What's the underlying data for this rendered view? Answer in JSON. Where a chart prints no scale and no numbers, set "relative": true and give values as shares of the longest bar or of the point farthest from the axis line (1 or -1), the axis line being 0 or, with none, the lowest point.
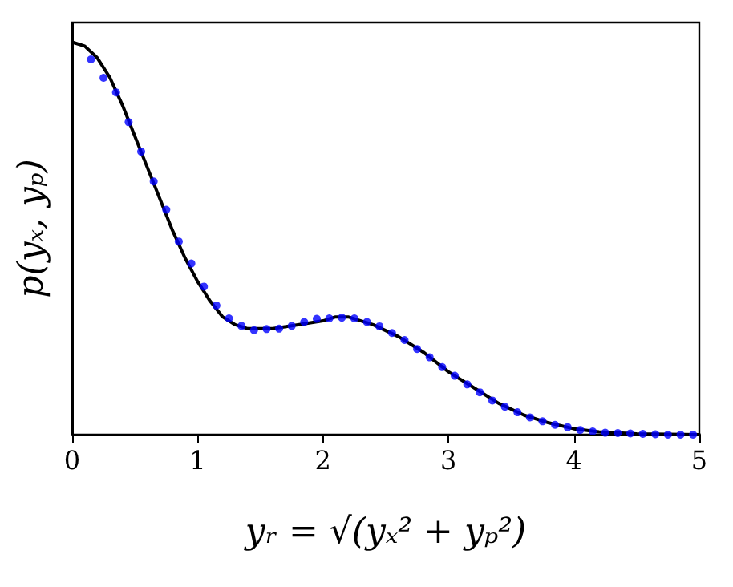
{
  "chart_data": {
    "type": "line",
    "relative": true,
    "xlabel": "yᵣ = √(yₓ² + yₚ²)",
    "ylabel": "p(yₓ, yₚ)",
    "xlim": [
      0,
      5
    ],
    "xticks": [
      0,
      1,
      2,
      3,
      4,
      5
    ],
    "tick_labels": "x",
    "grid": false,
    "series": [
      {
        "color": "#000000",
        "marker": "none",
        "line_style": "solid",
        "x": [
          0,
          0.1,
          0.2,
          0.3,
          0.4,
          0.5,
          0.6,
          0.7,
          0.8,
          0.9,
          1.0,
          1.1,
          1.2,
          1.3,
          1.4,
          1.5,
          1.6,
          1.8,
          2.0,
          2.1,
          2.2,
          2.4,
          2.6,
          2.8,
          3.0,
          3.2,
          3.4,
          3.6,
          3.8,
          4.0,
          4.2,
          4.5,
          5.0
        ],
        "values": [
          1.0,
          0.99,
          0.96,
          0.91,
          0.84,
          0.76,
          0.68,
          0.6,
          0.52,
          0.45,
          0.39,
          0.34,
          0.3,
          0.28,
          0.27,
          0.27,
          0.27,
          0.28,
          0.29,
          0.3,
          0.3,
          0.28,
          0.25,
          0.21,
          0.16,
          0.12,
          0.08,
          0.05,
          0.03,
          0.015,
          0.007,
          0.002,
          0
        ]
      },
      {
        "type": "scatter",
        "color": "#0000ff",
        "marker": "circle",
        "x": [
          0.15,
          0.25,
          0.35,
          0.45,
          0.55,
          0.65,
          0.75,
          0.85,
          0.95,
          1.05,
          1.15,
          1.25,
          1.35,
          1.45,
          1.55,
          1.65,
          1.75,
          1.85,
          1.95,
          2.05,
          2.15,
          2.25,
          2.35,
          2.45,
          2.55,
          2.65,
          2.75,
          2.85,
          2.95,
          3.05,
          3.15,
          3.25,
          3.35,
          3.45,
          3.55,
          3.65,
          3.75,
          3.85,
          3.95,
          4.05,
          4.15,
          4.25,
          4.35,
          4.45,
          4.55,
          4.65,
          4.75,
          4.85,
          4.95
        ],
        "values": [
          0.956,
          0.909,
          0.872,
          0.796,
          0.721,
          0.645,
          0.573,
          0.492,
          0.436,
          0.377,
          0.329,
          0.296,
          0.277,
          0.266,
          0.269,
          0.27,
          0.277,
          0.287,
          0.295,
          0.296,
          0.298,
          0.296,
          0.287,
          0.276,
          0.259,
          0.241,
          0.218,
          0.197,
          0.172,
          0.15,
          0.128,
          0.108,
          0.087,
          0.071,
          0.057,
          0.044,
          0.034,
          0.025,
          0.019,
          0.012,
          0.008,
          0.005,
          0.004,
          0.003,
          0.002,
          0.001,
          0,
          0,
          0
        ]
      }
    ]
  }
}
